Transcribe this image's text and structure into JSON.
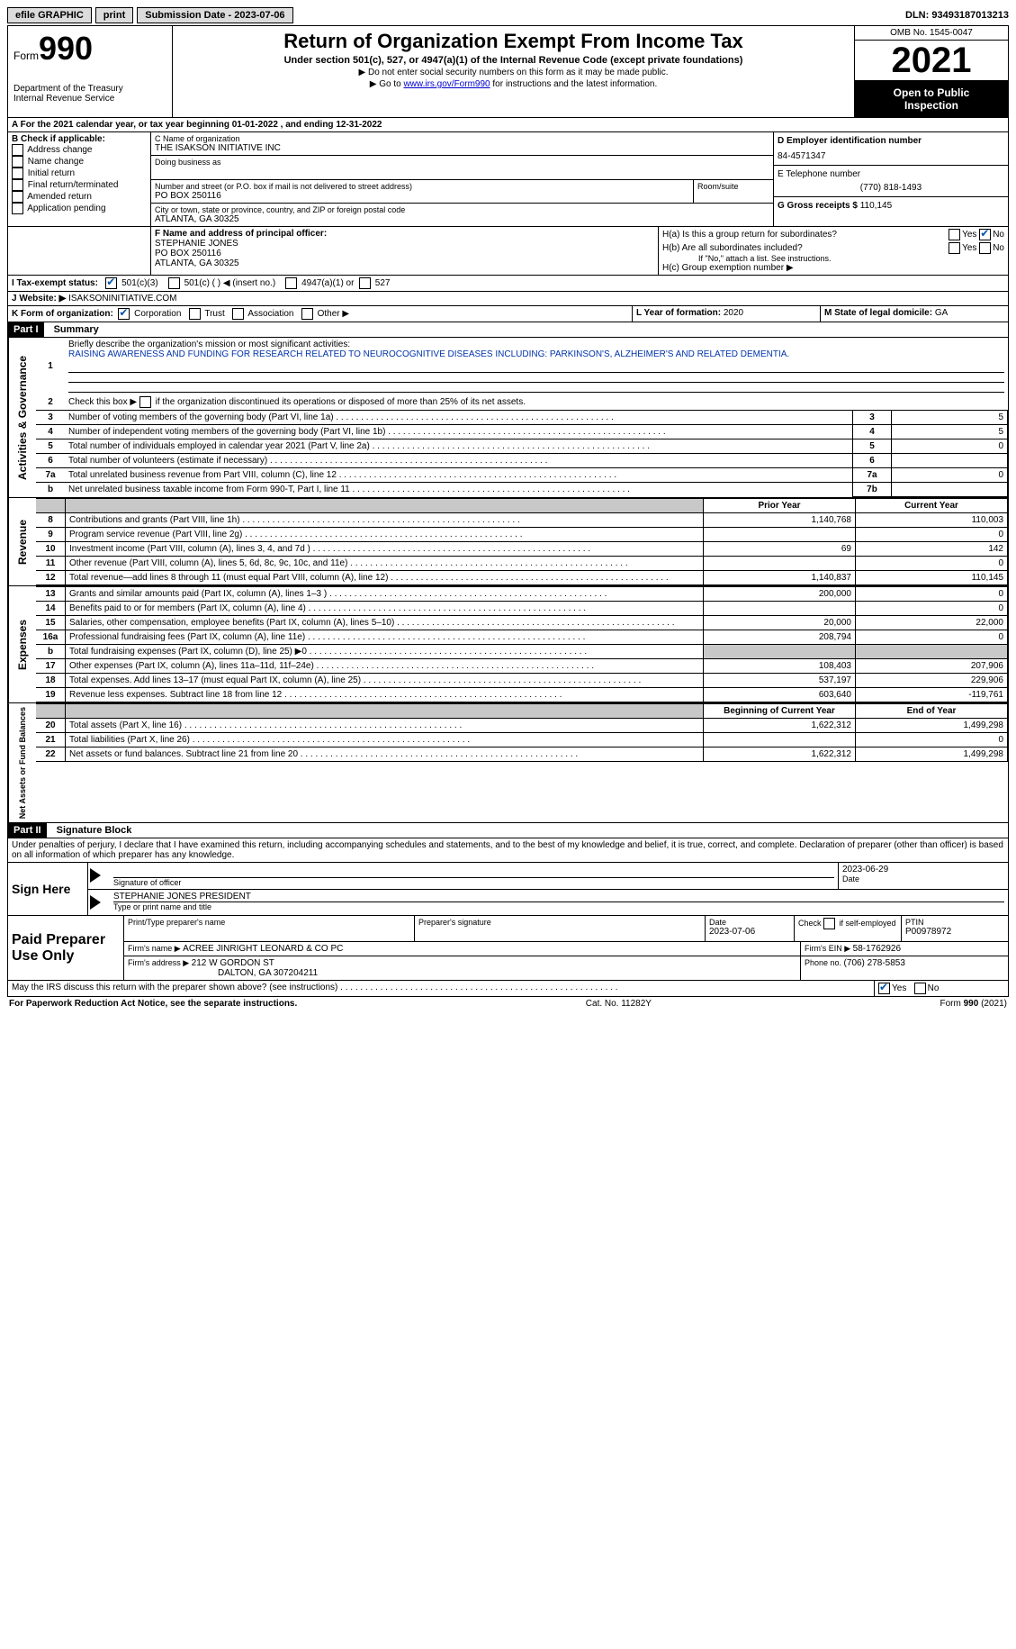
{
  "topbar": {
    "efile": "efile GRAPHIC",
    "print": "print",
    "sub_label": "Submission Date - ",
    "sub_date": "2023-07-06",
    "dln_label": "DLN: ",
    "dln": "93493187013213"
  },
  "header": {
    "form_word": "Form",
    "form_no": "990",
    "dept": "Department of the Treasury",
    "irs": "Internal Revenue Service",
    "title": "Return of Organization Exempt From Income Tax",
    "sub": "Under section 501(c), 527, or 4947(a)(1) of the Internal Revenue Code (except private foundations)",
    "note1": "▶ Do not enter social security numbers on this form as it may be made public.",
    "note2_pre": "▶ Go to ",
    "note2_link": "www.irs.gov/Form990",
    "note2_post": " for instructions and the latest information.",
    "omb": "OMB No. 1545-0047",
    "year": "2021",
    "open1": "Open to Public",
    "open2": "Inspection"
  },
  "periodA": "A For the 2021 calendar year, or tax year beginning 01-01-2022   , and ending 12-31-2022",
  "boxB": {
    "label": "B Check if applicable:",
    "items": [
      "Address change",
      "Name change",
      "Initial return",
      "Final return/terminated",
      "Amended return",
      "Application pending"
    ]
  },
  "boxC": {
    "name_label": "C Name of organization",
    "name": "THE ISAKSON INITIATIVE INC",
    "dba_label": "Doing business as",
    "addr_label": "Number and street (or P.O. box if mail is not delivered to street address)",
    "room_label": "Room/suite",
    "addr": "PO BOX 250116",
    "city_label": "City or town, state or province, country, and ZIP or foreign postal code",
    "city": "ATLANTA, GA  30325"
  },
  "boxD": {
    "label": "D Employer identification number",
    "value": "84-4571347"
  },
  "boxE": {
    "label": "E Telephone number",
    "value": "(770) 818-1493"
  },
  "boxG": {
    "label": "G Gross receipts $ ",
    "value": "110,145"
  },
  "boxF": {
    "label": "F Name and address of principal officer:",
    "name": "STEPHANIE JONES",
    "addr1": "PO BOX 250116",
    "addr2": "ATLANTA, GA  30325"
  },
  "boxH": {
    "a": "H(a)  Is this a group return for subordinates?",
    "b": "H(b)  Are all subordinates included?",
    "b_note": "If \"No,\" attach a list. See instructions.",
    "c": "H(c)  Group exemption number ▶",
    "yes": "Yes",
    "no": "No"
  },
  "taxexempt": {
    "label": "I   Tax-exempt status:",
    "c3": "501(c)(3)",
    "c": "501(c) (   ) ◀ (insert no.)",
    "a1": "4947(a)(1) or",
    "s527": "527"
  },
  "website": {
    "label": "J   Website: ▶",
    "value": " ISAKSONINITIATIVE.COM"
  },
  "boxK": {
    "label": "K Form of organization:",
    "corp": "Corporation",
    "trust": "Trust",
    "assoc": "Association",
    "other": "Other ▶"
  },
  "boxL": {
    "label": "L Year of formation: ",
    "value": "2020"
  },
  "boxM": {
    "label": "M State of legal domicile: ",
    "value": "GA"
  },
  "part1": {
    "head": "Part I",
    "title": "Summary",
    "q1_label": "Briefly describe the organization's mission or most significant activities:",
    "q1_text": "RAISING AWARENESS AND FUNDING FOR RESEARCH RELATED TO NEUROCOGNITIVE DISEASES INCLUDING: PARKINSON'S, ALZHEIMER'S AND RELATED DEMENTIA.",
    "q2": "Check this box ▶        if the organization discontinued its operations or disposed of more than 25% of its net assets.",
    "lines_ag": [
      {
        "n": "3",
        "t": "Number of voting members of the governing body (Part VI, line 1a)",
        "box": "3",
        "v": "5"
      },
      {
        "n": "4",
        "t": "Number of independent voting members of the governing body (Part VI, line 1b)",
        "box": "4",
        "v": "5"
      },
      {
        "n": "5",
        "t": "Total number of individuals employed in calendar year 2021 (Part V, line 2a)",
        "box": "5",
        "v": "0"
      },
      {
        "n": "6",
        "t": "Total number of volunteers (estimate if necessary)",
        "box": "6",
        "v": ""
      },
      {
        "n": "7a",
        "t": "Total unrelated business revenue from Part VIII, column (C), line 12",
        "box": "7a",
        "v": "0"
      },
      {
        "n": "b",
        "t": "Net unrelated business taxable income from Form 990-T, Part I, line 11",
        "box": "7b",
        "v": ""
      }
    ],
    "col_prior": "Prior Year",
    "col_current": "Current Year",
    "rev": [
      {
        "n": "8",
        "t": "Contributions and grants (Part VIII, line 1h)",
        "p": "1,140,768",
        "c": "110,003"
      },
      {
        "n": "9",
        "t": "Program service revenue (Part VIII, line 2g)",
        "p": "",
        "c": "0"
      },
      {
        "n": "10",
        "t": "Investment income (Part VIII, column (A), lines 3, 4, and 7d )",
        "p": "69",
        "c": "142"
      },
      {
        "n": "11",
        "t": "Other revenue (Part VIII, column (A), lines 5, 6d, 8c, 9c, 10c, and 11e)",
        "p": "",
        "c": "0"
      },
      {
        "n": "12",
        "t": "Total revenue—add lines 8 through 11 (must equal Part VIII, column (A), line 12)",
        "p": "1,140,837",
        "c": "110,145"
      }
    ],
    "exp": [
      {
        "n": "13",
        "t": "Grants and similar amounts paid (Part IX, column (A), lines 1–3 )",
        "p": "200,000",
        "c": "0"
      },
      {
        "n": "14",
        "t": "Benefits paid to or for members (Part IX, column (A), line 4)",
        "p": "",
        "c": "0"
      },
      {
        "n": "15",
        "t": "Salaries, other compensation, employee benefits (Part IX, column (A), lines 5–10)",
        "p": "20,000",
        "c": "22,000"
      },
      {
        "n": "16a",
        "t": "Professional fundraising fees (Part IX, column (A), line 11e)",
        "p": "208,794",
        "c": "0"
      },
      {
        "n": "b",
        "t": "Total fundraising expenses (Part IX, column (D), line 25) ▶0",
        "p": "__SHADE__",
        "c": "__SHADE__"
      },
      {
        "n": "17",
        "t": "Other expenses (Part IX, column (A), lines 11a–11d, 11f–24e)",
        "p": "108,403",
        "c": "207,906"
      },
      {
        "n": "18",
        "t": "Total expenses. Add lines 13–17 (must equal Part IX, column (A), line 25)",
        "p": "537,197",
        "c": "229,906"
      },
      {
        "n": "19",
        "t": "Revenue less expenses. Subtract line 18 from line 12",
        "p": "603,640",
        "c": "-119,761"
      }
    ],
    "col_begin": "Beginning of Current Year",
    "col_end": "End of Year",
    "na": [
      {
        "n": "20",
        "t": "Total assets (Part X, line 16)",
        "p": "1,622,312",
        "c": "1,499,298"
      },
      {
        "n": "21",
        "t": "Total liabilities (Part X, line 26)",
        "p": "",
        "c": "0"
      },
      {
        "n": "22",
        "t": "Net assets or fund balances. Subtract line 21 from line 20",
        "p": "1,622,312",
        "c": "1,499,298"
      }
    ],
    "vlab_ag": "Activities & Governance",
    "vlab_rev": "Revenue",
    "vlab_exp": "Expenses",
    "vlab_na": "Net Assets or Fund Balances"
  },
  "part2": {
    "head": "Part II",
    "title": "Signature Block",
    "decl": "Under penalties of perjury, I declare that I have examined this return, including accompanying schedules and statements, and to the best of my knowledge and belief, it is true, correct, and complete. Declaration of preparer (other than officer) is based on all information of which preparer has any knowledge.",
    "sign_here": "Sign Here",
    "sig_officer": "Signature of officer",
    "sig_date": "2023-06-29",
    "date_label": "Date",
    "officer_name": "STEPHANIE JONES  PRESIDENT",
    "type_label": "Type or print name and title",
    "paid": "Paid Preparer Use Only",
    "prep_name_label": "Print/Type preparer's name",
    "prep_sig_label": "Preparer's signature",
    "prep_date_label": "Date",
    "prep_date": "2023-07-06",
    "check_if": "Check        if self-employed",
    "ptin_label": "PTIN",
    "ptin": "P00978972",
    "firm_name_label": "Firm's name    ▶ ",
    "firm_name": "ACREE JINRIGHT LEONARD & CO PC",
    "firm_ein_label": "Firm's EIN ▶ ",
    "firm_ein": "58-1762926",
    "firm_addr_label": "Firm's address ▶ ",
    "firm_addr": "212 W GORDON ST",
    "firm_city": "DALTON, GA  307204211",
    "phone_label": "Phone no. ",
    "phone": "(706) 278-5853",
    "discuss": "May the IRS discuss this return with the preparer shown above? (see instructions)",
    "yes": "Yes",
    "no": "No"
  },
  "footer": {
    "pra": "For Paperwork Reduction Act Notice, see the separate instructions.",
    "cat": "Cat. No. 11282Y",
    "form": "Form 990 (2021)"
  }
}
